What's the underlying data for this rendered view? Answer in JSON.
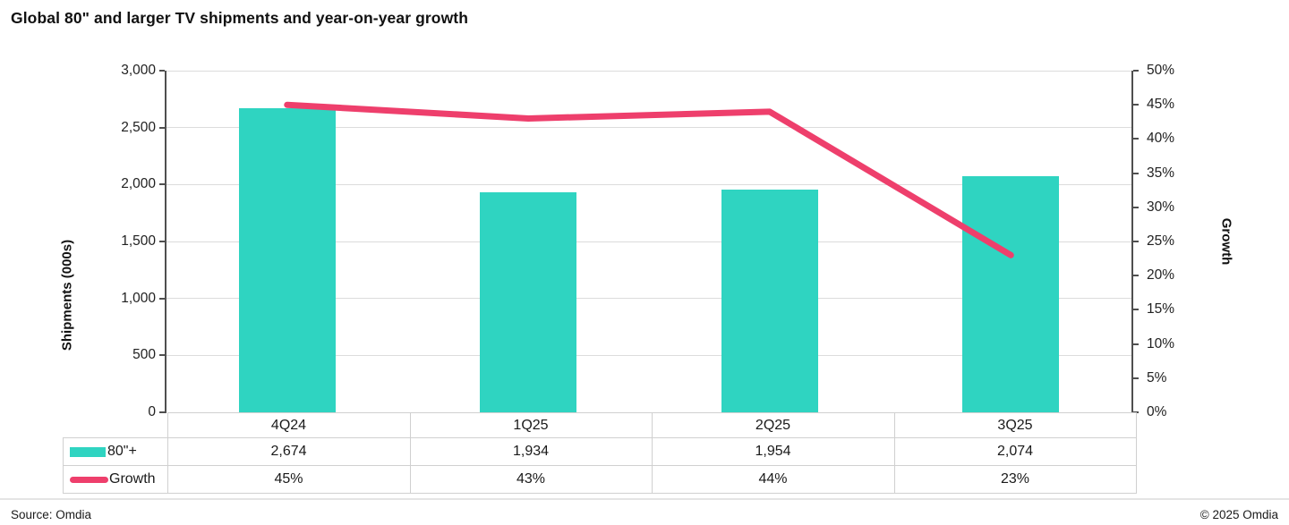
{
  "title": "Global 80\" and larger TV shipments and year-on-year growth",
  "footer": {
    "source": "Source: Omdia",
    "copyright": "© 2025 Omdia"
  },
  "colors": {
    "bar": "#2fd4c1",
    "line": "#ee3f6c",
    "gridline": "#dcdcdc",
    "axis": "#4f4f4f",
    "table_border": "#d0d0d0"
  },
  "chart_data": {
    "type": "bar",
    "subtype": "combo bar + line, dual axis, with data table",
    "categories": [
      "4Q24",
      "1Q25",
      "2Q25",
      "3Q25"
    ],
    "series": [
      {
        "name": "80\"+",
        "type": "bar",
        "axis": "left",
        "values": [
          2674,
          1934,
          1954,
          2074
        ],
        "value_labels": [
          "2,674",
          "1,934",
          "1,954",
          "2,074"
        ],
        "color": "#2fd4c1"
      },
      {
        "name": "Growth",
        "type": "line",
        "axis": "right",
        "values": [
          45,
          43,
          44,
          23
        ],
        "value_labels": [
          "45%",
          "43%",
          "44%",
          "23%"
        ],
        "color": "#ee3f6c"
      }
    ],
    "left_axis": {
      "label": "Shipments (000s)",
      "min": 0,
      "max": 3000,
      "tick_labels": [
        "3,000",
        "2,500",
        "2,000",
        "1,500",
        "1,000",
        "500",
        "0"
      ]
    },
    "right_axis": {
      "label": "Growth",
      "min": 0,
      "max": 50,
      "tick_labels": [
        "50%",
        "45%",
        "40%",
        "35%",
        "30%",
        "25%",
        "20%",
        "15%",
        "10%",
        "5%",
        "0%"
      ]
    },
    "grid": true,
    "legend_position": "table-left-column"
  }
}
